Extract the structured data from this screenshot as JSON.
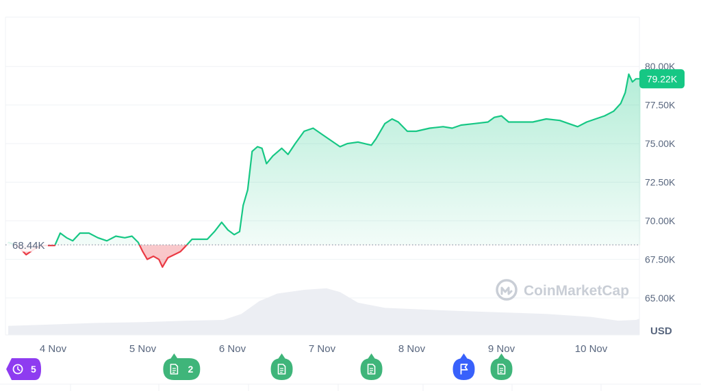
{
  "chart_data": {
    "type": "area",
    "currency_label": "USD",
    "current_value_label": "79.22K",
    "reference_value_label": "68.44K",
    "reference_value": 68.44,
    "ylim": [
      62.6,
      83.2
    ],
    "y_ticks": [
      {
        "value": 65.0,
        "label": "65.00K"
      },
      {
        "value": 67.5,
        "label": "67.50K"
      },
      {
        "value": 70.0,
        "label": "70.00K"
      },
      {
        "value": 72.5,
        "label": "72.50K"
      },
      {
        "value": 75.0,
        "label": "75.00K"
      },
      {
        "value": 77.5,
        "label": "77.50K"
      },
      {
        "value": 80.0,
        "label": "80.00K"
      }
    ],
    "x_ticks": [
      {
        "t": 0.5,
        "label": "4 Nov"
      },
      {
        "t": 1.5,
        "label": "5 Nov"
      },
      {
        "t": 2.5,
        "label": "6 Nov"
      },
      {
        "t": 3.5,
        "label": "7 Nov"
      },
      {
        "t": 4.5,
        "label": "8 Nov"
      },
      {
        "t": 5.5,
        "label": "9 Nov"
      },
      {
        "t": 6.5,
        "label": "10 Nov"
      }
    ],
    "price_series": [
      [
        0.0,
        68.6
      ],
      [
        0.1,
        68.4
      ],
      [
        0.2,
        67.8
      ],
      [
        0.3,
        68.2
      ],
      [
        0.4,
        68.4
      ],
      [
        0.52,
        68.4
      ],
      [
        0.58,
        69.2
      ],
      [
        0.65,
        68.9
      ],
      [
        0.72,
        68.7
      ],
      [
        0.8,
        69.2
      ],
      [
        0.9,
        69.2
      ],
      [
        1.0,
        68.9
      ],
      [
        1.1,
        68.7
      ],
      [
        1.2,
        69.0
      ],
      [
        1.3,
        68.9
      ],
      [
        1.38,
        69.0
      ],
      [
        1.45,
        68.6
      ],
      [
        1.5,
        68.0
      ],
      [
        1.55,
        67.5
      ],
      [
        1.62,
        67.7
      ],
      [
        1.68,
        67.5
      ],
      [
        1.72,
        67.0
      ],
      [
        1.78,
        67.6
      ],
      [
        1.85,
        67.8
      ],
      [
        1.92,
        68.0
      ],
      [
        1.97,
        68.3
      ],
      [
        2.05,
        68.8
      ],
      [
        2.15,
        68.8
      ],
      [
        2.22,
        68.8
      ],
      [
        2.3,
        69.3
      ],
      [
        2.38,
        69.9
      ],
      [
        2.45,
        69.4
      ],
      [
        2.52,
        69.1
      ],
      [
        2.58,
        69.3
      ],
      [
        2.62,
        71.0
      ],
      [
        2.67,
        72.0
      ],
      [
        2.72,
        74.5
      ],
      [
        2.78,
        74.8
      ],
      [
        2.83,
        74.7
      ],
      [
        2.88,
        73.7
      ],
      [
        2.95,
        74.2
      ],
      [
        3.05,
        74.7
      ],
      [
        3.12,
        74.3
      ],
      [
        3.2,
        75.0
      ],
      [
        3.3,
        75.8
      ],
      [
        3.4,
        76.0
      ],
      [
        3.5,
        75.6
      ],
      [
        3.6,
        75.2
      ],
      [
        3.7,
        74.8
      ],
      [
        3.78,
        75.0
      ],
      [
        3.9,
        75.1
      ],
      [
        4.05,
        74.9
      ],
      [
        4.1,
        75.3
      ],
      [
        4.2,
        76.3
      ],
      [
        4.28,
        76.6
      ],
      [
        4.35,
        76.4
      ],
      [
        4.45,
        75.8
      ],
      [
        4.55,
        75.8
      ],
      [
        4.7,
        76.0
      ],
      [
        4.85,
        76.1
      ],
      [
        4.95,
        76.0
      ],
      [
        5.05,
        76.2
      ],
      [
        5.2,
        76.3
      ],
      [
        5.35,
        76.4
      ],
      [
        5.42,
        76.7
      ],
      [
        5.5,
        76.8
      ],
      [
        5.58,
        76.4
      ],
      [
        5.7,
        76.4
      ],
      [
        5.85,
        76.4
      ],
      [
        6.0,
        76.6
      ],
      [
        6.15,
        76.5
      ],
      [
        6.25,
        76.3
      ],
      [
        6.35,
        76.1
      ],
      [
        6.45,
        76.4
      ],
      [
        6.55,
        76.6
      ],
      [
        6.65,
        76.8
      ],
      [
        6.75,
        77.1
      ],
      [
        6.83,
        77.6
      ],
      [
        6.88,
        78.3
      ],
      [
        6.92,
        79.5
      ],
      [
        6.96,
        79.0
      ],
      [
        7.0,
        79.2
      ],
      [
        7.05,
        79.2
      ]
    ],
    "volume_series": [
      [
        0.0,
        0.12
      ],
      [
        0.5,
        0.14
      ],
      [
        1.0,
        0.16
      ],
      [
        1.5,
        0.17
      ],
      [
        2.0,
        0.19
      ],
      [
        2.4,
        0.2
      ],
      [
        2.6,
        0.28
      ],
      [
        2.8,
        0.45
      ],
      [
        3.0,
        0.55
      ],
      [
        3.3,
        0.6
      ],
      [
        3.55,
        0.62
      ],
      [
        3.7,
        0.57
      ],
      [
        3.9,
        0.43
      ],
      [
        4.2,
        0.36
      ],
      [
        4.6,
        0.34
      ],
      [
        5.0,
        0.32
      ],
      [
        5.5,
        0.3
      ],
      [
        6.0,
        0.28
      ],
      [
        6.5,
        0.24
      ],
      [
        6.8,
        0.19
      ],
      [
        7.0,
        0.2
      ],
      [
        7.05,
        0.22
      ]
    ],
    "up_color": "#16c784",
    "down_color": "#ea3943"
  },
  "watermark": {
    "text": "CoinMarketCap",
    "icon": "coinmarketcap-logo-icon"
  },
  "markers": [
    {
      "kind": "history-pill",
      "icon": "history-icon",
      "label": "5",
      "color": "#8e3cf0",
      "t": 0.13
    },
    {
      "kind": "news",
      "icon": "document-icon",
      "label": "2",
      "color": "#3fb57a",
      "t": 1.85
    },
    {
      "kind": "news",
      "icon": "document-icon",
      "label": "",
      "color": "#3fb57a",
      "t": 3.05
    },
    {
      "kind": "news",
      "icon": "document-icon",
      "label": "",
      "color": "#3fb57a",
      "t": 4.05
    },
    {
      "kind": "event",
      "icon": "flag-icon",
      "label": "",
      "color": "#3861fb",
      "t": 5.08
    },
    {
      "kind": "news",
      "icon": "document-icon",
      "label": "",
      "color": "#3fb57a",
      "t": 5.5
    }
  ]
}
